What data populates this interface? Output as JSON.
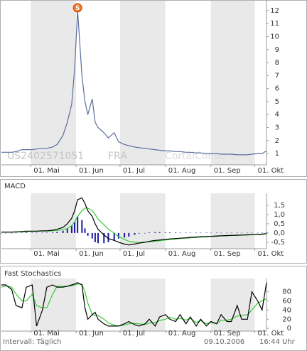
{
  "chart_data": [
    {
      "type": "line",
      "isin": "US2402571051",
      "exchange": "FRA",
      "watermark": "CortalConsors",
      "annotation": {
        "text": "S",
        "x": "06-02"
      },
      "x": [
        "04-11",
        "04-14",
        "04-18",
        "04-21",
        "04-25",
        "04-28",
        "05-02",
        "05-05",
        "05-09",
        "05-12",
        "05-16",
        "05-19",
        "05-23",
        "05-26",
        "05-29",
        "05-31",
        "06-02",
        "06-05",
        "06-07",
        "06-09",
        "06-12",
        "06-14",
        "06-16",
        "06-20",
        "06-23",
        "06-27",
        "06-30",
        "07-04",
        "07-07",
        "07-11",
        "07-14",
        "07-18",
        "07-21",
        "07-25",
        "07-28",
        "08-01",
        "08-04",
        "08-08",
        "08-11",
        "08-15",
        "08-18",
        "08-22",
        "08-25",
        "08-29",
        "09-01",
        "09-05",
        "09-08",
        "09-12",
        "09-15",
        "09-19",
        "09-22",
        "09-26",
        "09-29",
        "10-03",
        "10-06",
        "10-09"
      ],
      "series": [
        {
          "color": "#5b6e9c",
          "values": [
            1.1,
            1.1,
            1.1,
            1.15,
            1.3,
            1.3,
            1.3,
            1.35,
            1.4,
            1.4,
            1.5,
            1.7,
            2.4,
            3.4,
            4.8,
            7.5,
            12.0,
            7.0,
            5.0,
            4.0,
            5.2,
            3.4,
            3.0,
            2.6,
            2.2,
            2.6,
            1.9,
            1.7,
            1.6,
            1.5,
            1.45,
            1.4,
            1.35,
            1.3,
            1.25,
            1.2,
            1.2,
            1.15,
            1.15,
            1.1,
            1.1,
            1.05,
            1.05,
            1.0,
            1.0,
            1.0,
            0.95,
            0.95,
            0.95,
            0.9,
            0.9,
            0.9,
            0.95,
            1.0,
            1.0,
            1.2
          ]
        }
      ],
      "xlim": [
        "04-11",
        "10-09"
      ],
      "xticks": [
        {
          "value": "05-01",
          "label": "01. Mai"
        },
        {
          "value": "06-01",
          "label": "01. Jun"
        },
        {
          "value": "07-01",
          "label": "01. Jul"
        },
        {
          "value": "08-01",
          "label": "01. Aug"
        },
        {
          "value": "09-01",
          "label": "01. Sep"
        },
        {
          "value": "10-01",
          "label": "01. Okt"
        }
      ],
      "ylim": [
        0.13,
        12.76
      ],
      "yticks": [
        1,
        2,
        3,
        4,
        5,
        6,
        7,
        8,
        9,
        10,
        11,
        12
      ],
      "shaded_bands": true
    },
    {
      "type": "line",
      "title": "MACD",
      "x": [
        "04-11",
        "04-14",
        "04-18",
        "04-21",
        "04-25",
        "04-28",
        "05-02",
        "05-05",
        "05-09",
        "05-12",
        "05-16",
        "05-19",
        "05-23",
        "05-26",
        "05-29",
        "05-31",
        "06-02",
        "06-05",
        "06-07",
        "06-09",
        "06-12",
        "06-14",
        "06-16",
        "06-20",
        "06-23",
        "06-27",
        "06-30",
        "07-04",
        "07-07",
        "07-11",
        "07-14",
        "07-18",
        "07-21",
        "07-25",
        "07-28",
        "08-01",
        "08-04",
        "08-08",
        "08-11",
        "08-15",
        "08-18",
        "08-22",
        "08-25",
        "08-29",
        "09-01",
        "09-05",
        "09-08",
        "09-12",
        "09-15",
        "09-19",
        "09-22",
        "09-26",
        "09-29",
        "10-03",
        "10-06",
        "10-09"
      ],
      "series": [
        {
          "type": "bar",
          "color": "#1a1aa0",
          "values": [
            0,
            0,
            0,
            0.01,
            0.02,
            0.03,
            0.02,
            0.01,
            0.02,
            0.02,
            0.03,
            0.06,
            0.12,
            0.25,
            0.4,
            0.6,
            0.9,
            0.7,
            0.25,
            -0.15,
            -0.3,
            -0.5,
            -0.55,
            -0.55,
            -0.5,
            -0.4,
            -0.3,
            -0.25,
            -0.2,
            -0.1,
            -0.03,
            0,
            0.03,
            0.05,
            0.04,
            0.03,
            0.03,
            0.03,
            0.02,
            0.02,
            0.02,
            0.02,
            0.02,
            0.02,
            0.01,
            0.02,
            0.01,
            0.01,
            0.01,
            0.01,
            0.01,
            0.01,
            0.01,
            0.01,
            0.02,
            0.02
          ]
        },
        {
          "color": "#33cc33",
          "values": [
            0.05,
            0.05,
            0.05,
            0.05,
            0.06,
            0.07,
            0.08,
            0.09,
            0.1,
            0.1,
            0.12,
            0.14,
            0.18,
            0.25,
            0.4,
            0.6,
            0.9,
            1.2,
            1.35,
            1.35,
            1.2,
            1.0,
            0.75,
            0.45,
            0.2,
            0.0,
            -0.2,
            -0.35,
            -0.45,
            -0.5,
            -0.52,
            -0.5,
            -0.48,
            -0.45,
            -0.42,
            -0.38,
            -0.35,
            -0.33,
            -0.3,
            -0.28,
            -0.26,
            -0.24,
            -0.22,
            -0.21,
            -0.19,
            -0.18,
            -0.16,
            -0.15,
            -0.14,
            -0.13,
            -0.12,
            -0.11,
            -0.1,
            -0.09,
            -0.08,
            -0.05
          ]
        },
        {
          "color": "#000000",
          "values": [
            0.05,
            0.05,
            0.05,
            0.06,
            0.08,
            0.1,
            0.1,
            0.1,
            0.12,
            0.12,
            0.15,
            0.2,
            0.3,
            0.5,
            0.8,
            1.2,
            1.8,
            1.9,
            1.6,
            1.2,
            0.9,
            0.5,
            0.2,
            -0.1,
            -0.3,
            -0.4,
            -0.5,
            -0.6,
            -0.65,
            -0.6,
            -0.55,
            -0.5,
            -0.45,
            -0.4,
            -0.38,
            -0.35,
            -0.32,
            -0.3,
            -0.28,
            -0.26,
            -0.24,
            -0.22,
            -0.2,
            -0.19,
            -0.18,
            -0.16,
            -0.15,
            -0.14,
            -0.13,
            -0.12,
            -0.11,
            -0.1,
            -0.09,
            -0.08,
            -0.06,
            -0.03
          ]
        }
      ],
      "xlim": [
        "04-11",
        "10-09"
      ],
      "xticks": [
        {
          "value": "05-01",
          "label": "01. Mai"
        },
        {
          "value": "06-01",
          "label": "01. Jun"
        },
        {
          "value": "07-01",
          "label": "01. Jul"
        },
        {
          "value": "08-01",
          "label": "01. Aug"
        },
        {
          "value": "09-01",
          "label": "01. Sep"
        },
        {
          "value": "10-01",
          "label": "01. Okt"
        }
      ],
      "ylim": [
        -0.85,
        2.15
      ],
      "yticks": [
        {
          "value": 1.5,
          "label": "1,5"
        },
        {
          "value": 1.0,
          "label": "1,0"
        },
        {
          "value": 0.5,
          "label": "0,5"
        },
        {
          "value": 0,
          "label": "0,0"
        },
        {
          "value": -0.5,
          "label": "-0,5"
        }
      ],
      "shaded_bands": true
    },
    {
      "type": "line",
      "title": "Fast Stochastics",
      "x": [
        "04-11",
        "04-14",
        "04-18",
        "04-21",
        "04-25",
        "04-28",
        "05-02",
        "05-05",
        "05-09",
        "05-12",
        "05-16",
        "05-19",
        "05-23",
        "05-26",
        "05-29",
        "05-31",
        "06-02",
        "06-05",
        "06-07",
        "06-09",
        "06-12",
        "06-14",
        "06-16",
        "06-20",
        "06-23",
        "06-27",
        "06-30",
        "07-04",
        "07-07",
        "07-11",
        "07-14",
        "07-18",
        "07-21",
        "07-25",
        "07-28",
        "08-01",
        "08-04",
        "08-08",
        "08-11",
        "08-15",
        "08-18",
        "08-22",
        "08-25",
        "08-29",
        "09-01",
        "09-05",
        "09-08",
        "09-12",
        "09-15",
        "09-19",
        "09-22",
        "09-26",
        "09-29",
        "10-03",
        "10-06",
        "10-09"
      ],
      "series": [
        {
          "color": "#33cc33",
          "values": [
            90,
            93,
            90,
            75,
            60,
            60,
            75,
            50,
            45,
            45,
            75,
            92,
            92,
            92,
            93,
            95,
            97,
            97,
            80,
            55,
            30,
            28,
            28,
            20,
            12,
            7,
            5,
            7,
            10,
            11,
            10,
            8,
            12,
            12,
            17,
            20,
            25,
            20,
            22,
            18,
            22,
            13,
            17,
            10,
            13,
            10,
            18,
            18,
            20,
            27,
            28,
            30,
            40,
            55,
            60,
            65
          ]
        },
        {
          "color": "#000000",
          "values": [
            95,
            95,
            85,
            50,
            45,
            90,
            95,
            5,
            40,
            90,
            95,
            90,
            90,
            92,
            95,
            97,
            100,
            95,
            45,
            20,
            30,
            35,
            20,
            10,
            5,
            5,
            5,
            10,
            15,
            8,
            5,
            10,
            20,
            5,
            25,
            30,
            20,
            15,
            30,
            10,
            25,
            5,
            20,
            5,
            15,
            10,
            30,
            15,
            15,
            50,
            20,
            20,
            80,
            60,
            40,
            100
          ]
        }
      ],
      "xlim": [
        "04-11",
        "10-09"
      ],
      "xticks": [
        {
          "value": "05-01",
          "label": "01. Mai"
        },
        {
          "value": "06-01",
          "label": "01. Jun"
        },
        {
          "value": "07-01",
          "label": "01. Jul"
        },
        {
          "value": "08-01",
          "label": "01. Aug"
        },
        {
          "value": "09-01",
          "label": "01. Sep"
        },
        {
          "value": "10-01",
          "label": "01. Okt"
        }
      ],
      "ylim": [
        -6,
        109
      ],
      "yticks": [
        80,
        60,
        40,
        20,
        0
      ],
      "shaded_bands": true
    }
  ],
  "footer": {
    "interval": "Intervall: Täglich",
    "date": "09.10.2006",
    "time": "16:44 Uhr"
  }
}
